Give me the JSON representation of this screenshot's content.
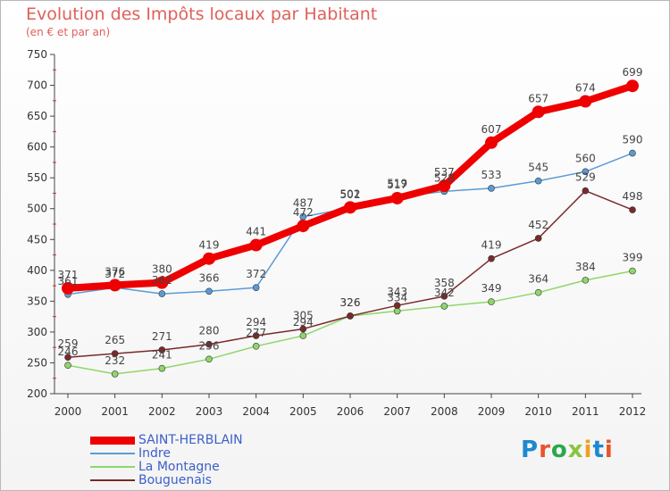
{
  "header": {
    "title": "Evolution des Impôts locaux par Habitant",
    "subtitle": "(en € et par an)"
  },
  "logo": {
    "text": "Proxiti",
    "colors": [
      "#1e88d0",
      "#e8542c",
      "#2aa84a",
      "#8ac43f",
      "#f0a020",
      "#1e88d0",
      "#e8542c"
    ]
  },
  "chart_data": {
    "type": "line",
    "title": "Evolution des Impôts locaux par Habitant",
    "subtitle": "(en € et par an)",
    "xlabel": "",
    "ylabel": "",
    "ylim": [
      200,
      750
    ],
    "yticks": [
      200,
      250,
      300,
      350,
      400,
      450,
      500,
      550,
      600,
      650,
      700,
      750
    ],
    "x": [
      2000,
      2001,
      2002,
      2003,
      2004,
      2005,
      2006,
      2007,
      2008,
      2009,
      2010,
      2011,
      2012
    ],
    "grid": false,
    "legend_position": "bottom-left",
    "series": [
      {
        "name": "SAINT-HERBLAIN",
        "color": "#ee0000",
        "style": "thick",
        "values": [
          371,
          376,
          380,
          419,
          441,
          472,
          502,
          517,
          537,
          607,
          657,
          674,
          699
        ]
      },
      {
        "name": "Indre",
        "color": "#5b9bd5",
        "style": "thin",
        "values": [
          361,
          372,
          362,
          366,
          372,
          487,
          501,
          519,
          528,
          533,
          545,
          560,
          590
        ]
      },
      {
        "name": "La Montagne",
        "color": "#8fd66a",
        "style": "thin",
        "values": [
          246,
          232,
          241,
          256,
          277,
          294,
          326,
          334,
          342,
          349,
          364,
          384,
          399
        ]
      },
      {
        "name": "Bouguenais",
        "color": "#7a2a2a",
        "style": "thin",
        "values": [
          259,
          265,
          271,
          280,
          294,
          305,
          326,
          343,
          358,
          419,
          452,
          529,
          498
        ]
      }
    ]
  }
}
